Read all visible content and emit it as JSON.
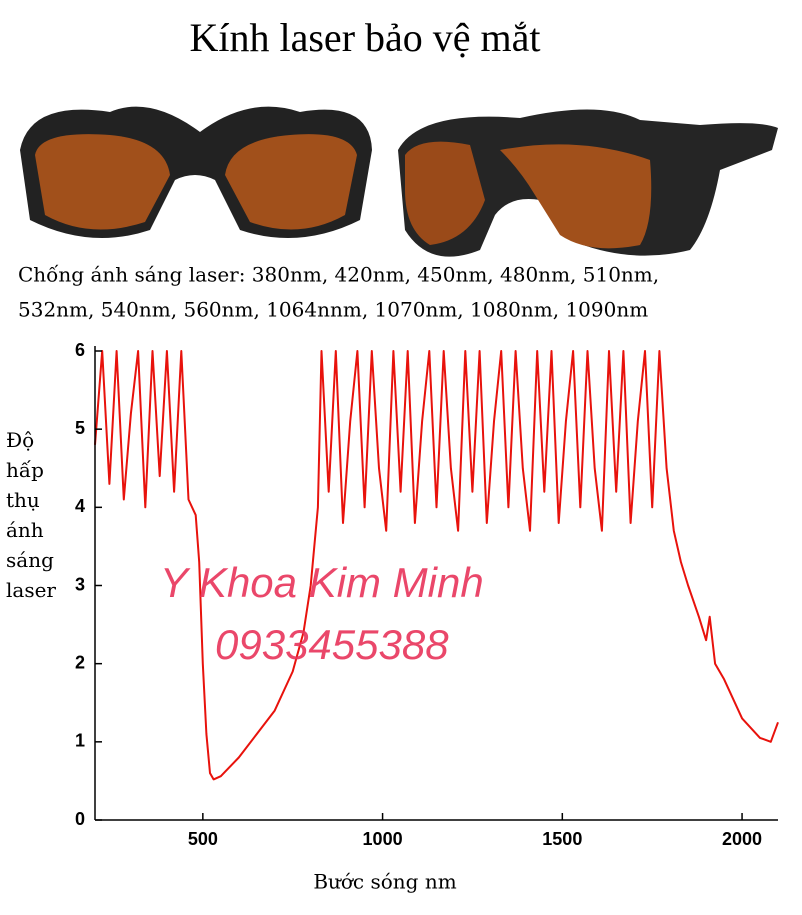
{
  "chart_data": {
    "type": "line",
    "title": "Kính laser bảo vệ mắt",
    "subtitle": [
      "Chống ánh sáng laser: 380nm, 420nm, 450nm, 480nm, 510nm,",
      "532nm, 540nm, 560nm, 1064nnm, 1070nm, 1080nm, 1090nm"
    ],
    "y_label": "Độ hấp thụ ánh sáng laser",
    "x_label": "Bước sóng nm",
    "annotations": [
      "Y Khoa Kim Minh",
      "0933455388"
    ],
    "xlim": [
      200,
      2100
    ],
    "ylim": [
      0,
      6
    ],
    "xticks": [
      500,
      1000,
      1500,
      2000
    ],
    "yticks": [
      0,
      1,
      2,
      3,
      4,
      5,
      6
    ],
    "series": [
      {
        "color": "#e8120c",
        "x": [
          200,
          220,
          240,
          260,
          280,
          300,
          320,
          340,
          360,
          380,
          400,
          420,
          440,
          460,
          480,
          490,
          500,
          510,
          520,
          530,
          550,
          600,
          650,
          700,
          750,
          780,
          800,
          820,
          830,
          850,
          870,
          890,
          910,
          930,
          950,
          970,
          990,
          1010,
          1030,
          1050,
          1070,
          1090,
          1110,
          1130,
          1150,
          1170,
          1190,
          1210,
          1230,
          1250,
          1270,
          1290,
          1310,
          1330,
          1350,
          1370,
          1390,
          1410,
          1430,
          1450,
          1470,
          1490,
          1510,
          1530,
          1550,
          1570,
          1590,
          1610,
          1630,
          1650,
          1670,
          1690,
          1710,
          1730,
          1750,
          1770,
          1790,
          1810,
          1830,
          1850,
          1880,
          1900,
          1910,
          1925,
          1950,
          2000,
          2050,
          2080,
          2100
        ],
        "values": [
          4.8,
          6,
          4.3,
          6,
          4.1,
          5.2,
          6,
          4.0,
          6,
          4.4,
          6,
          4.2,
          6,
          4.1,
          3.9,
          3.3,
          2.0,
          1.1,
          0.6,
          0.52,
          0.56,
          0.8,
          1.1,
          1.4,
          1.9,
          2.4,
          3.0,
          4.0,
          6,
          4.2,
          6,
          3.8,
          5.1,
          6,
          4.0,
          6,
          4.5,
          3.7,
          6,
          4.2,
          6,
          3.8,
          5.1,
          6,
          4.0,
          6,
          4.5,
          3.7,
          6,
          4.2,
          6,
          3.8,
          5.1,
          6,
          4.0,
          6,
          4.5,
          3.7,
          6,
          4.2,
          6,
          3.8,
          5.1,
          6,
          4.0,
          6,
          4.5,
          3.7,
          6,
          4.2,
          6,
          3.8,
          5.1,
          6,
          4.0,
          6,
          4.5,
          3.7,
          3.3,
          3.0,
          2.6,
          2.3,
          2.6,
          2.0,
          1.8,
          1.3,
          1.05,
          1.0,
          1.25
        ]
      }
    ]
  }
}
